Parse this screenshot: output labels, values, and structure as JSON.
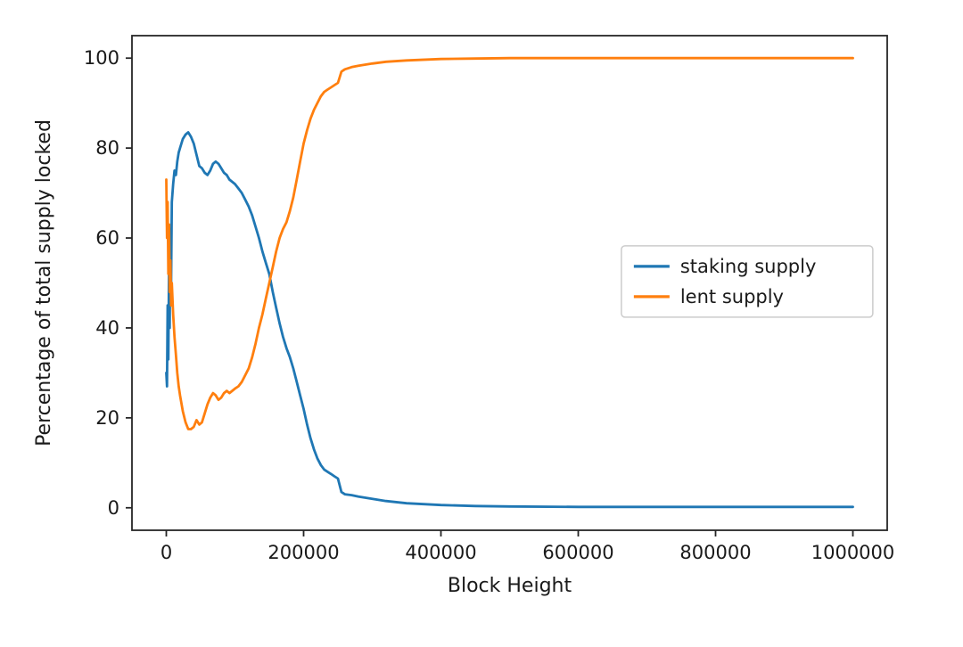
{
  "page": {
    "background": "#ffffff",
    "text_color": "#1a1a1a",
    "spine_color": "#262626"
  },
  "chart_data": {
    "type": "line",
    "title": "",
    "xlabel": "Block Height",
    "ylabel": "Percentage of total supply locked",
    "xlim": [
      -50000,
      1050000
    ],
    "ylim": [
      -5,
      105
    ],
    "xticks": [
      0,
      200000,
      400000,
      600000,
      800000,
      1000000
    ],
    "xtick_labels": [
      "0",
      "200000",
      "400000",
      "600000",
      "800000",
      "1000000"
    ],
    "yticks": [
      0,
      20,
      40,
      60,
      80,
      100
    ],
    "ytick_labels": [
      "0",
      "20",
      "40",
      "60",
      "80",
      "100"
    ],
    "grid": false,
    "legend": {
      "position": "center-right",
      "border_color": "#cccccc",
      "background": "#ffffff"
    },
    "x": [
      0,
      1000,
      2000,
      3000,
      4000,
      5000,
      6000,
      7000,
      8000,
      10000,
      12000,
      14000,
      16000,
      18000,
      20000,
      24000,
      28000,
      32000,
      36000,
      40000,
      44000,
      48000,
      52000,
      56000,
      60000,
      64000,
      68000,
      72000,
      76000,
      80000,
      84000,
      88000,
      92000,
      96000,
      100000,
      105000,
      110000,
      115000,
      120000,
      125000,
      130000,
      135000,
      140000,
      145000,
      150000,
      155000,
      160000,
      165000,
      170000,
      175000,
      180000,
      185000,
      190000,
      195000,
      200000,
      205000,
      210000,
      215000,
      220000,
      225000,
      230000,
      235000,
      240000,
      245000,
      250000,
      255000,
      260000,
      270000,
      280000,
      300000,
      320000,
      350000,
      400000,
      450000,
      500000,
      600000,
      700000,
      800000,
      900000,
      1000000
    ],
    "series": [
      {
        "name": "staking supply",
        "color": "#1f77b4",
        "values": [
          30,
          27,
          45,
          33,
          55,
          40,
          62,
          50,
          68,
          72,
          75,
          74,
          77,
          79,
          80,
          82,
          83,
          83.5,
          82.5,
          81,
          78.5,
          76,
          75.5,
          74.5,
          74,
          75,
          76.5,
          77,
          76.5,
          75.5,
          74.5,
          74,
          73,
          72.5,
          72,
          71,
          70,
          68.5,
          67,
          65,
          62.5,
          60,
          57,
          54.5,
          52,
          48,
          44.5,
          41,
          38,
          35.5,
          33.5,
          31,
          28,
          25,
          22,
          18.5,
          15.5,
          13,
          11,
          9.5,
          8.5,
          8,
          7.5,
          7,
          6.5,
          3.5,
          3,
          2.8,
          2.5,
          2,
          1.5,
          1,
          0.6,
          0.4,
          0.3,
          0.2,
          0.2,
          0.2,
          0.2,
          0.2
        ]
      },
      {
        "name": "lent supply",
        "color": "#ff7f0e",
        "values": [
          73,
          60,
          68,
          52,
          63,
          48,
          55,
          45,
          50,
          43,
          38,
          34,
          30,
          27,
          25,
          21.5,
          19,
          17.5,
          17.5,
          18,
          19.5,
          18.5,
          19,
          21,
          23,
          24.5,
          25.5,
          25,
          24,
          24.5,
          25.5,
          26,
          25.5,
          26,
          26.5,
          27,
          28,
          29.5,
          31,
          33.5,
          36.5,
          40,
          43,
          46.5,
          50,
          53.5,
          57,
          60,
          62,
          63.5,
          66,
          69,
          73,
          77,
          81,
          84,
          86.5,
          88.5,
          90,
          91.5,
          92.5,
          93,
          93.5,
          94,
          94.5,
          97,
          97.5,
          98,
          98.3,
          98.8,
          99.2,
          99.5,
          99.8,
          99.9,
          100,
          100,
          100,
          100,
          100,
          100
        ]
      }
    ]
  }
}
